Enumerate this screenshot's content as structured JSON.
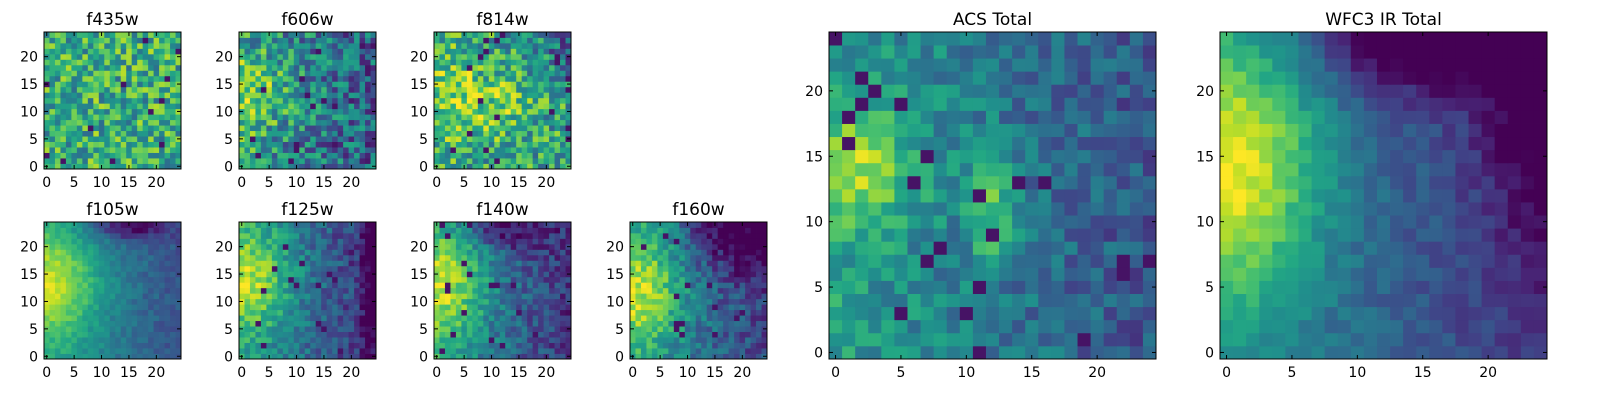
{
  "figure": {
    "colormap": "viridis",
    "grid": false,
    "legend": false
  },
  "chart_data": [
    {
      "type": "heatmap",
      "title": "f435w",
      "xlabel": "",
      "ylabel": "",
      "shape": [
        25,
        25
      ],
      "xlim": [
        -0.5,
        24.5
      ],
      "ylim": [
        -0.5,
        24.5
      ],
      "xticks": [
        "0",
        "5",
        "10",
        "15",
        "20"
      ],
      "yticks": [
        "0",
        "5",
        "10",
        "15",
        "20"
      ],
      "texture": "noisy",
      "summary": "uniform noisy field with scattered dark and bright pixels"
    },
    {
      "type": "heatmap",
      "title": "f606w",
      "xlabel": "",
      "ylabel": "",
      "shape": [
        25,
        25
      ],
      "xlim": [
        -0.5,
        24.5
      ],
      "ylim": [
        -0.5,
        24.5
      ],
      "xticks": [
        "0",
        "5",
        "10",
        "15",
        "20"
      ],
      "yticks": [
        "0",
        "5",
        "10",
        "15",
        "20"
      ],
      "texture": "noisy",
      "summary": "bright toward left edge around y 10-16, darker toward right"
    },
    {
      "type": "heatmap",
      "title": "f814w",
      "xlabel": "",
      "ylabel": "",
      "shape": [
        25,
        25
      ],
      "xlim": [
        -0.5,
        24.5
      ],
      "ylim": [
        -0.5,
        24.5
      ],
      "xticks": [
        "0",
        "5",
        "10",
        "15",
        "20"
      ],
      "yticks": [
        "0",
        "5",
        "10",
        "15",
        "20"
      ],
      "texture": "noisy",
      "summary": "bright at left and centre, dark pixels upper right"
    },
    {
      "type": "heatmap",
      "title": "f105w",
      "xlabel": "",
      "ylabel": "",
      "shape": [
        25,
        25
      ],
      "xlim": [
        -0.5,
        24.5
      ],
      "ylim": [
        -0.5,
        24.5
      ],
      "xticks": [
        "0",
        "5",
        "10",
        "15",
        "20"
      ],
      "yticks": [
        "0",
        "5",
        "10",
        "15",
        "20"
      ],
      "texture": "smooth",
      "summary": "bright on left at y approx 14, fading right; dark top right"
    },
    {
      "type": "heatmap",
      "title": "f125w",
      "xlabel": "",
      "ylabel": "",
      "shape": [
        25,
        25
      ],
      "xlim": [
        -0.5,
        24.5
      ],
      "ylim": [
        -0.5,
        24.5
      ],
      "xticks": [
        "0",
        "5",
        "10",
        "15",
        "20"
      ],
      "yticks": [
        "0",
        "5",
        "10",
        "15",
        "20"
      ],
      "texture": "medium",
      "summary": "bright on left, dark column on far right"
    },
    {
      "type": "heatmap",
      "title": "f140w",
      "xlabel": "",
      "ylabel": "",
      "shape": [
        25,
        25
      ],
      "xlim": [
        -0.5,
        24.5
      ],
      "ylim": [
        -0.5,
        24.5
      ],
      "xticks": [
        "0",
        "5",
        "10",
        "15",
        "20"
      ],
      "yticks": [
        "0",
        "5",
        "10",
        "15",
        "20"
      ],
      "texture": "medium",
      "summary": "bright on left, dark pixels top and right"
    },
    {
      "type": "heatmap",
      "title": "f160w",
      "xlabel": "",
      "ylabel": "",
      "shape": [
        25,
        25
      ],
      "xlim": [
        -0.5,
        24.5
      ],
      "ylim": [
        -0.5,
        24.5
      ],
      "xticks": [
        "0",
        "5",
        "10",
        "15",
        "20"
      ],
      "yticks": [
        "0",
        "5",
        "10",
        "15",
        "20"
      ],
      "texture": "medium",
      "summary": "bright on left, dark upper right region"
    },
    {
      "type": "heatmap",
      "title": "ACS Total",
      "xlabel": "",
      "ylabel": "",
      "shape": [
        25,
        25
      ],
      "xlim": [
        -0.5,
        24.5
      ],
      "ylim": [
        -0.5,
        24.5
      ],
      "xticks": [
        "0",
        "5",
        "10",
        "15",
        "20"
      ],
      "yticks": [
        "0",
        "5",
        "10",
        "15",
        "20"
      ],
      "texture": "medium",
      "summary": "bright at left around y 13-16 and streak near x 12, y 11; dark pixels top right"
    },
    {
      "type": "heatmap",
      "title": "WFC3 IR Total",
      "xlabel": "",
      "ylabel": "",
      "shape": [
        25,
        25
      ],
      "xlim": [
        -0.5,
        24.5
      ],
      "ylim": [
        -0.5,
        24.5
      ],
      "xticks": [
        "0",
        "5",
        "10",
        "15",
        "20"
      ],
      "yticks": [
        "0",
        "5",
        "10",
        "15",
        "20"
      ],
      "texture": "smooth",
      "summary": "bright at left edge around y 13-17 fading to dark purple in top right corner"
    }
  ]
}
